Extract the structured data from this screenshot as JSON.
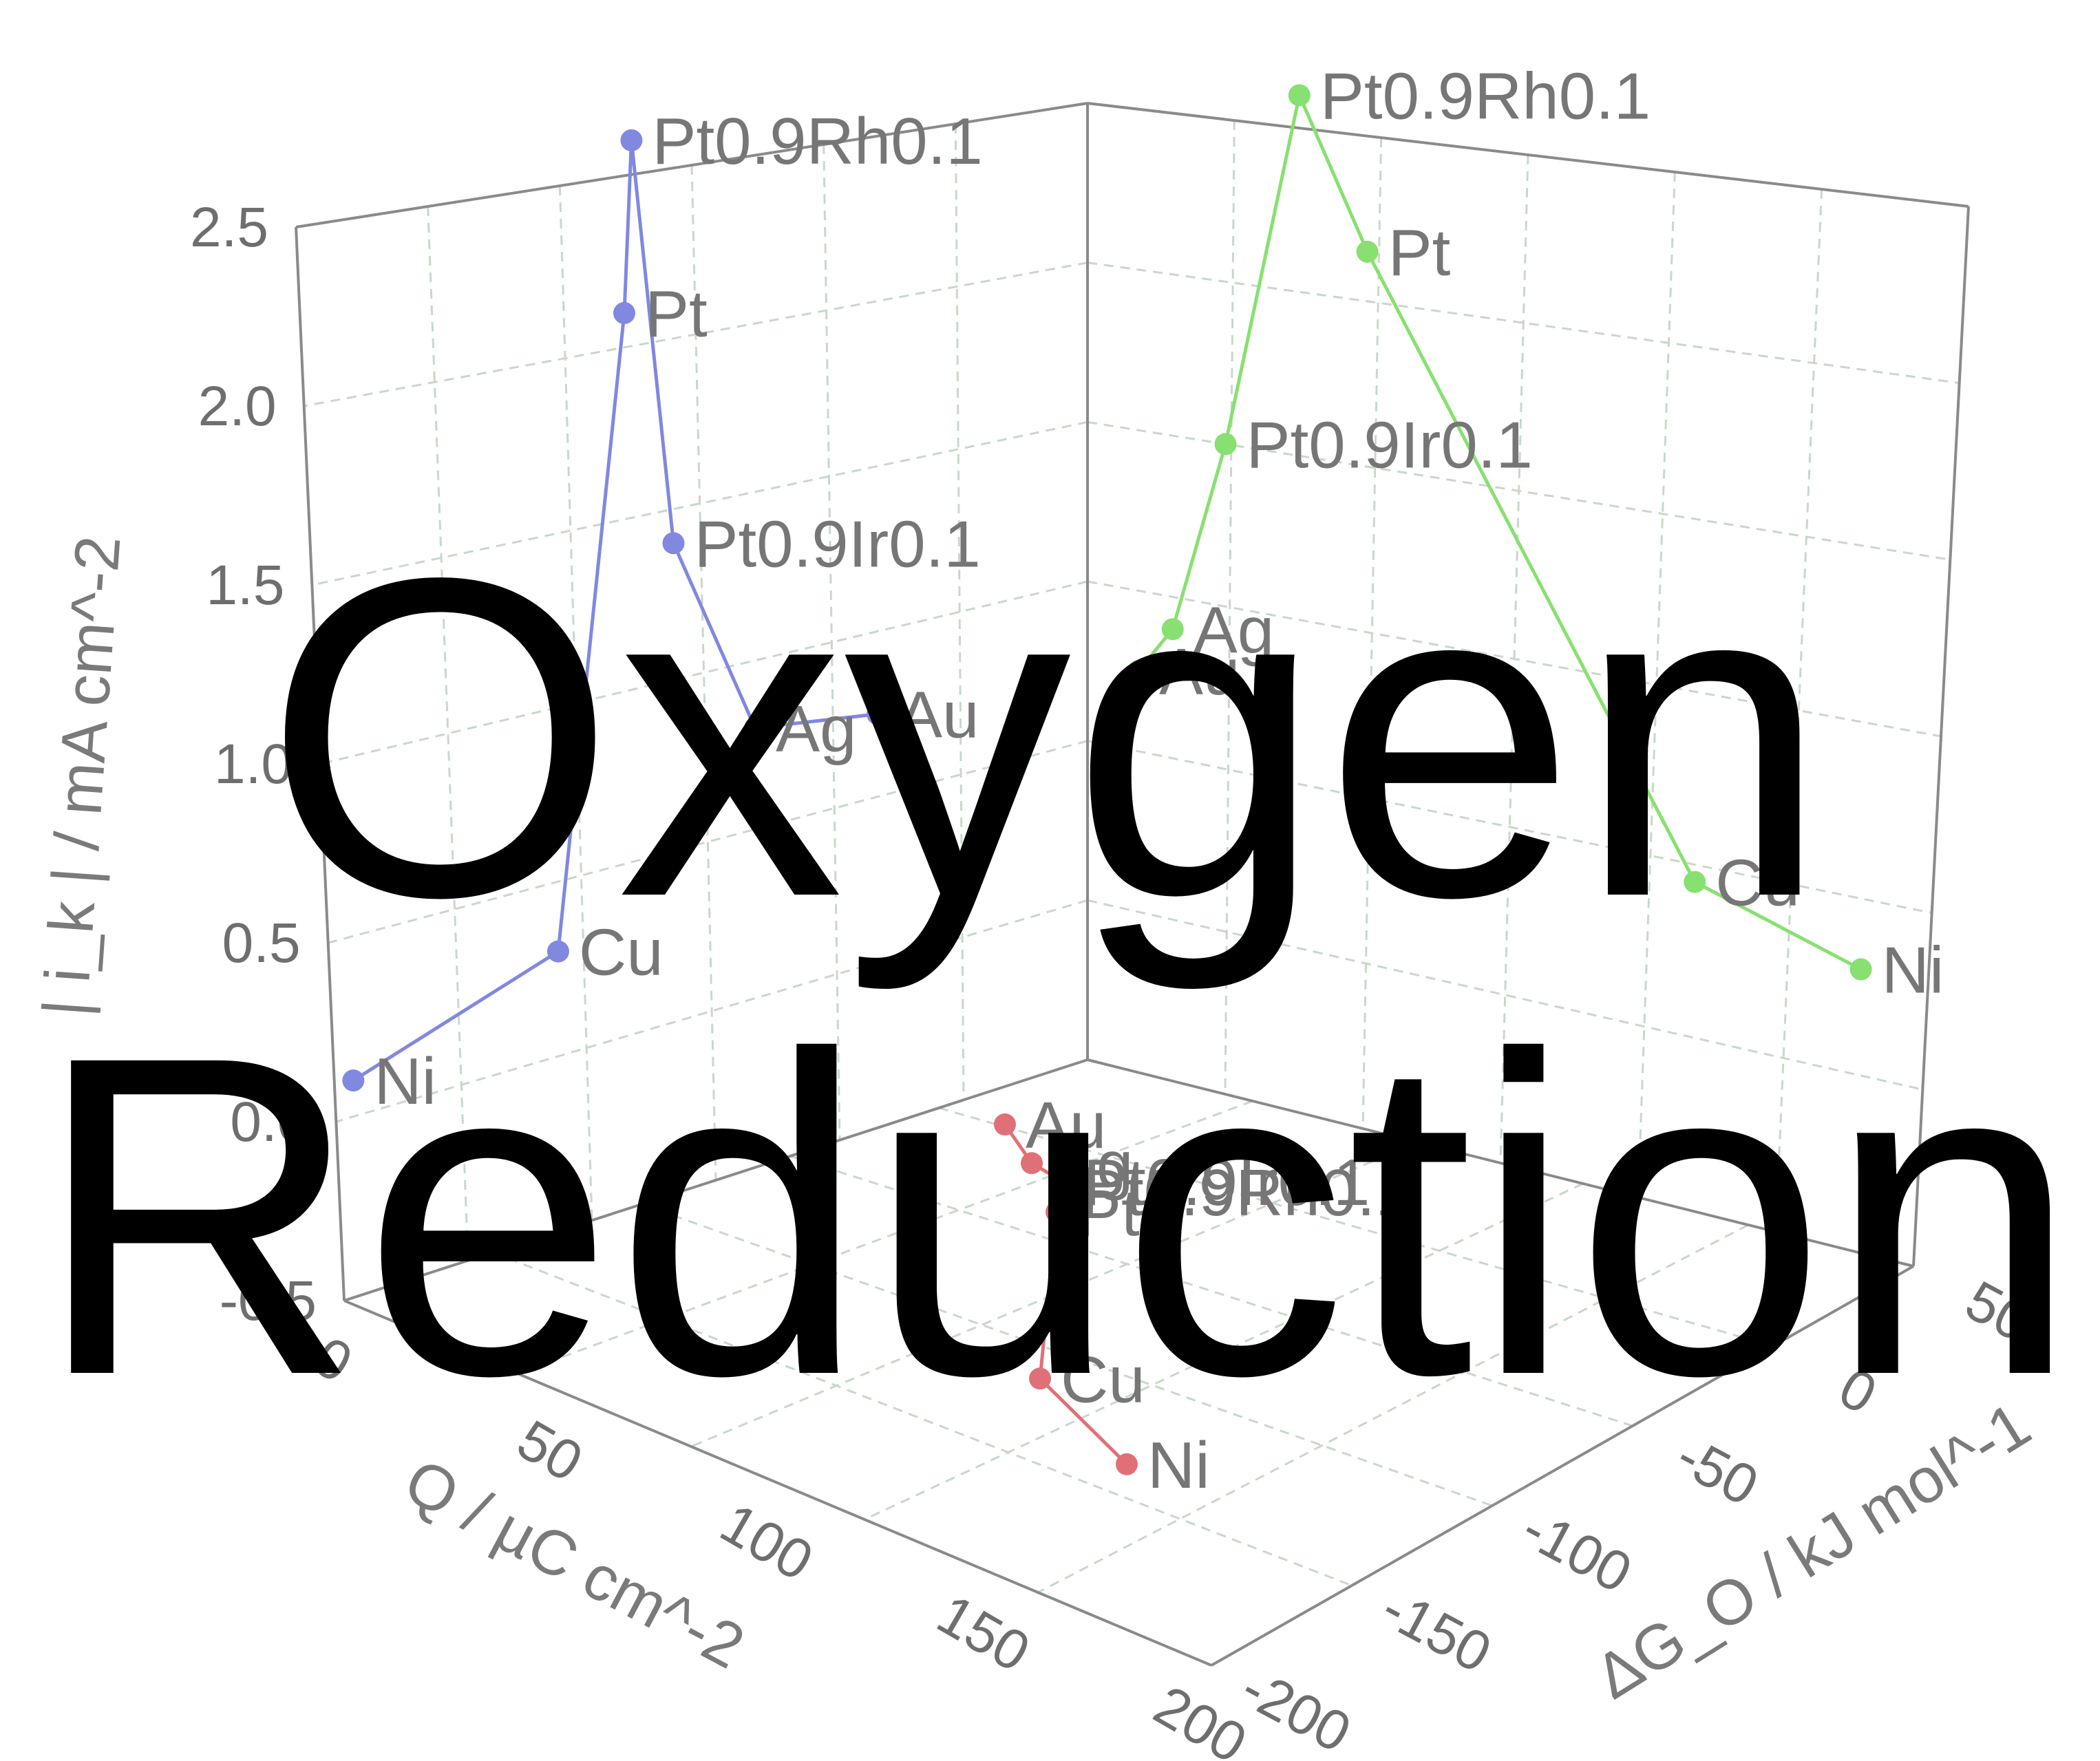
{
  "overlay": {
    "line1": "Oxygen",
    "line2": "Reduction"
  },
  "chart_data": {
    "type": "line3d",
    "grid": true,
    "axes": {
      "z": {
        "label": "| i_k | / mA cm^-2",
        "ticks": [
          "-0.5",
          "0.0",
          "0.5",
          "1.0",
          "1.5",
          "2.0",
          "2.5"
        ],
        "range": [
          -0.5,
          2.5
        ]
      },
      "x": {
        "label": "Q / µC cm^-2",
        "ticks": [
          "0",
          "50",
          "100",
          "150",
          "200"
        ],
        "range": [
          0,
          200
        ]
      },
      "y": {
        "label": "ΔG_O / kJ mol^-1",
        "ticks": [
          "50",
          "0",
          "-50",
          "-100",
          "-150",
          "-200"
        ],
        "range": [
          -200,
          50
        ]
      }
    },
    "series": [
      {
        "projection": "current vs charge (Q-|ik| wall)",
        "color": "#8088e0",
        "points": [
          {
            "label": "Ni",
            "q": 5,
            "ik": 0.1
          },
          {
            "label": "Cu",
            "q": 60,
            "ik": 0.3
          },
          {
            "label": "Pt",
            "q": 82,
            "ik": 2.1
          },
          {
            "label": "Pt0.9Rh0.1",
            "q": 85,
            "ik": 2.6
          },
          {
            "label": "Pt0.9Ir0.1",
            "q": 93,
            "ik": 1.4
          },
          {
            "label": "Ag",
            "q": 113,
            "ik": 0.8
          },
          {
            "label": "Au",
            "q": 145,
            "ik": 0.75
          }
        ]
      },
      {
        "projection": "current vs free energy (ΔG-|ik| wall)",
        "color": "#88e070",
        "points": [
          {
            "label": "Au",
            "dg": 35,
            "ik": 0.75
          },
          {
            "label": "Ag",
            "dg": 25,
            "ik": 0.9
          },
          {
            "label": "Pt0.9Ir0.1",
            "dg": 10,
            "ik": 1.5
          },
          {
            "label": "Pt0.9Rh0.1",
            "dg": -10,
            "ik": 2.6
          },
          {
            "label": "Pt",
            "dg": -30,
            "ik": 2.15
          },
          {
            "label": "Cu",
            "dg": -130,
            "ik": 0.45
          },
          {
            "label": "Ni",
            "dg": -180,
            "ik": 0.3
          }
        ]
      },
      {
        "projection": "free energy vs charge (floor)",
        "color": "#e07078",
        "points": [
          {
            "label": "Au",
            "q": 40,
            "dg": 30
          },
          {
            "label": "Ag",
            "q": 55,
            "dg": 5
          },
          {
            "label": "Pt0.9Ir0.1",
            "q": 60,
            "dg": -10
          },
          {
            "label": "Pt0.9Rh0.1",
            "q": 65,
            "dg": -15
          },
          {
            "label": "Pt",
            "q": 75,
            "dg": -25
          },
          {
            "label": "Cu",
            "q": 155,
            "dg": -110
          },
          {
            "label": "Ni",
            "q": 185,
            "dg": -170
          }
        ]
      }
    ]
  }
}
